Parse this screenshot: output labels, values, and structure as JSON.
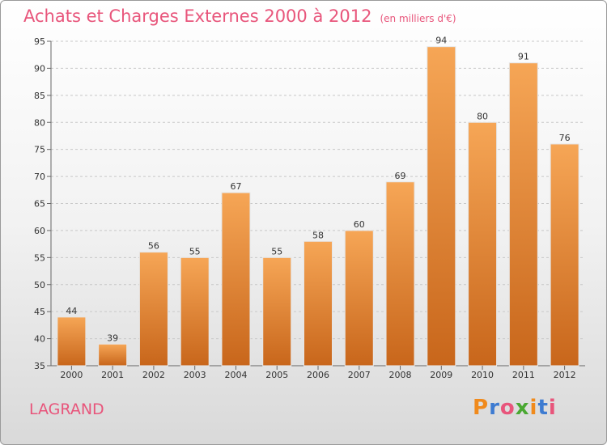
{
  "title": "Achats et Charges Externes 2000 à 2012",
  "subtitle": "(en milliers d'€)",
  "commune": "LAGRAND",
  "logo": {
    "text": "Proxiti",
    "colors": [
      "#f08a1c",
      "#3d7bd1",
      "#e8557b",
      "#4aa832",
      "#f08a1c",
      "#3d7bd1",
      "#e8557b"
    ]
  },
  "colors": {
    "title": "#e8557b",
    "bar_top": "#f6a656",
    "bar_bottom": "#c8661b",
    "grid": "#c8c8c8"
  },
  "chart_data": {
    "type": "bar",
    "categories": [
      "2000",
      "2001",
      "2002",
      "2003",
      "2004",
      "2005",
      "2006",
      "2007",
      "2008",
      "2009",
      "2010",
      "2011",
      "2012"
    ],
    "values": [
      44,
      39,
      56,
      55,
      67,
      55,
      58,
      60,
      69,
      94,
      80,
      91,
      76
    ],
    "ylim": [
      35,
      95
    ],
    "yticks": [
      35,
      40,
      45,
      50,
      55,
      60,
      65,
      70,
      75,
      80,
      85,
      90,
      95
    ],
    "grid": true,
    "xlabel": "",
    "ylabel": ""
  }
}
